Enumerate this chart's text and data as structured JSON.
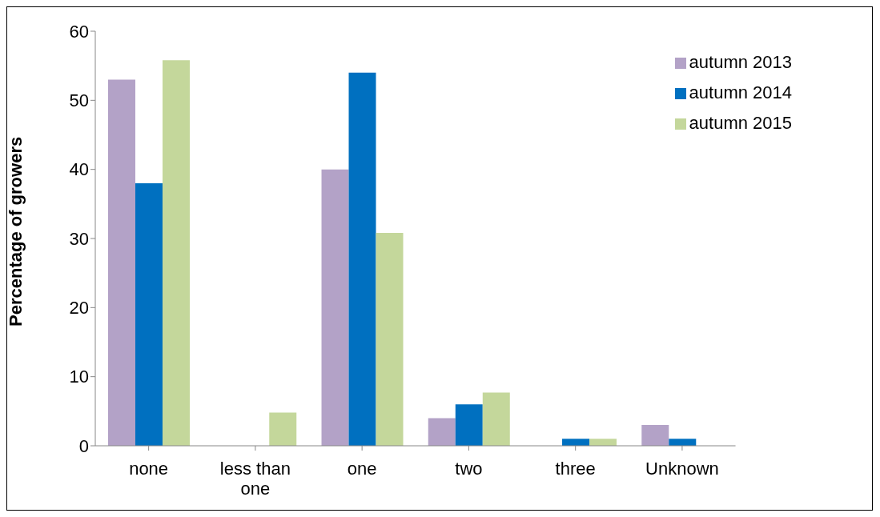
{
  "chart_data": {
    "type": "bar",
    "ylabel": "Percentage of growers",
    "categories": [
      "none",
      "less than one",
      "one",
      "two",
      "three",
      "Unknown"
    ],
    "series": [
      {
        "name": "autumn 2013",
        "color": "#b3a2c7",
        "values": [
          53,
          0,
          40,
          4,
          0,
          3
        ]
      },
      {
        "name": "autumn 2014",
        "color": "#0070c0",
        "values": [
          38,
          0,
          54,
          6,
          1,
          1
        ]
      },
      {
        "name": "autumn 2015",
        "color": "#c4d79b",
        "values": [
          55.8,
          4.8,
          30.8,
          7.7,
          1,
          0
        ]
      }
    ],
    "ylim": [
      0,
      60
    ],
    "yticks": [
      0,
      10,
      20,
      30,
      40,
      50,
      60
    ],
    "legend": "top right"
  }
}
